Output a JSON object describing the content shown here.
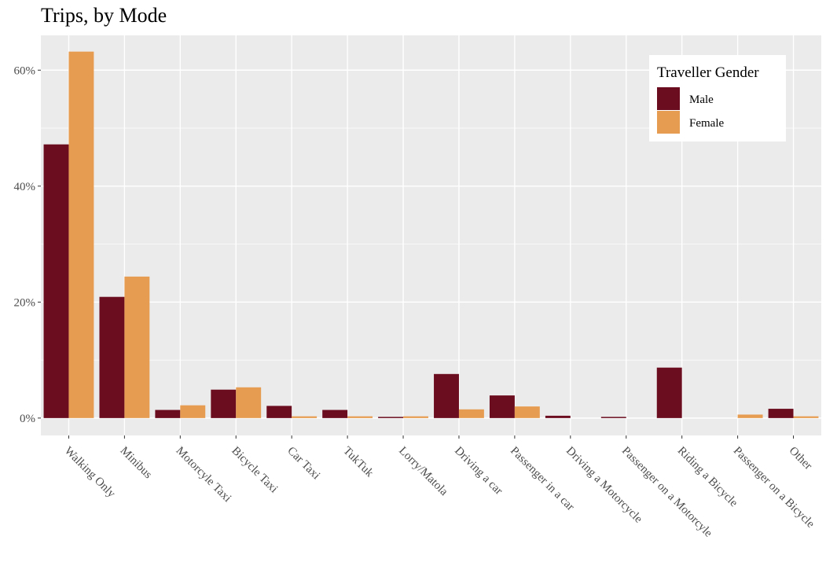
{
  "chart_data": {
    "type": "bar",
    "title": "Trips, by Mode",
    "xlabel": "",
    "ylabel": "",
    "categories": [
      "Walking Only",
      "Minibus",
      "Motorcyle Taxi",
      "Bicycle Taxi",
      "Car Taxi",
      "TukTuk",
      "Lorry/Matola",
      "Driving a car",
      "Passenger in a car",
      "Driving a Motorcycle",
      "Passenger on a Motorcyle",
      "Riding a Bicycle",
      "Passenger on a Bicycle",
      "Other"
    ],
    "series": [
      {
        "name": "Male",
        "color": "#6b0d1f",
        "values": [
          47.2,
          20.9,
          1.4,
          4.9,
          2.1,
          1.4,
          0.2,
          7.6,
          3.9,
          0.4,
          0.2,
          8.7,
          null,
          1.6
        ]
      },
      {
        "name": "Female",
        "color": "#e79d51",
        "values": [
          63.2,
          24.4,
          2.2,
          5.3,
          0.3,
          0.3,
          0.3,
          1.5,
          2.0,
          null,
          null,
          null,
          0.6,
          0.3
        ]
      }
    ],
    "ylim": [
      -3,
      66
    ],
    "yticks": [
      0,
      20,
      40,
      60
    ],
    "ytick_labels": [
      "0%",
      "20%",
      "40%",
      "60%"
    ],
    "grid": true,
    "legend": {
      "title": "Traveller Gender",
      "position": "top-right",
      "entries": [
        "Male",
        "Female"
      ]
    }
  }
}
